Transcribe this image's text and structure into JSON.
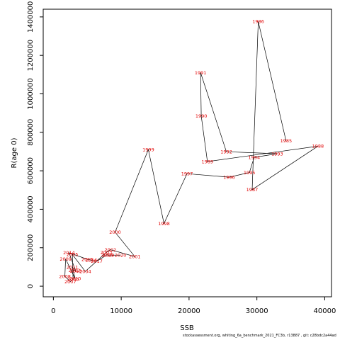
{
  "footer": "stockassessment.org,  whiting_6a_benchmark_2021_FC3b,  r13887 ,  git: c28bdc2a44ad",
  "chart_data": {
    "type": "scatter",
    "subtype": "labeled connected path (stock-recruitment)",
    "title": "",
    "xlabel": "SSB",
    "ylabel": "R(age 0)",
    "xlim": [
      -1500,
      41000
    ],
    "ylim": [
      -55000,
      1440000
    ],
    "xticks": [
      0,
      10000,
      20000,
      30000,
      40000
    ],
    "yticks": [
      0,
      200000,
      400000,
      600000,
      800000,
      1000000,
      1200000,
      1400000
    ],
    "grid": false,
    "legend": "none",
    "colors": {
      "line": "#000000",
      "labels": "#e00000"
    },
    "points": [
      {
        "label": "1985",
        "x": 34300,
        "y": 756000
      },
      {
        "label": "1986",
        "x": 30200,
        "y": 1376000
      },
      {
        "label": "1987",
        "x": 29300,
        "y": 502000
      },
      {
        "label": "1988",
        "x": 39000,
        "y": 728000
      },
      {
        "label": "1989",
        "x": 22700,
        "y": 648000
      },
      {
        "label": "1990",
        "x": 21800,
        "y": 885000
      },
      {
        "label": "1991",
        "x": 21700,
        "y": 1110000
      },
      {
        "label": "1992",
        "x": 25500,
        "y": 699000
      },
      {
        "label": "1993",
        "x": 33000,
        "y": 689000
      },
      {
        "label": "1994",
        "x": 29600,
        "y": 670000
      },
      {
        "label": "1995",
        "x": 28900,
        "y": 591000
      },
      {
        "label": "1996",
        "x": 25900,
        "y": 567000
      },
      {
        "label": "1997",
        "x": 19700,
        "y": 585000
      },
      {
        "label": "1998",
        "x": 16300,
        "y": 326000
      },
      {
        "label": "1999",
        "x": 14000,
        "y": 710000
      },
      {
        "label": "2000",
        "x": 9100,
        "y": 281000
      },
      {
        "label": "2001",
        "x": 12000,
        "y": 154000
      },
      {
        "label": "2002",
        "x": 8400,
        "y": 190000
      },
      {
        "label": "2003",
        "x": 7800,
        "y": 176000
      },
      {
        "label": "2004",
        "x": 4700,
        "y": 77000
      },
      {
        "label": "2005",
        "x": 2800,
        "y": 165000
      },
      {
        "label": "2006",
        "x": 2900,
        "y": 37000
      },
      {
        "label": "2007",
        "x": 2500,
        "y": 24000
      },
      {
        "label": "2008",
        "x": 1700,
        "y": 51000
      },
      {
        "label": "2009",
        "x": 1800,
        "y": 142000
      },
      {
        "label": "2010",
        "x": 3200,
        "y": 40000
      },
      {
        "label": "2011",
        "x": 2800,
        "y": 98000
      },
      {
        "label": "2012",
        "x": 3100,
        "y": 83000
      },
      {
        "label": "2013",
        "x": 3300,
        "y": 78000
      },
      {
        "label": "2014",
        "x": 2300,
        "y": 174000
      },
      {
        "label": "2015",
        "x": 5000,
        "y": 140000
      },
      {
        "label": "2016",
        "x": 5600,
        "y": 135000
      },
      {
        "label": "2017",
        "x": 6400,
        "y": 130000
      },
      {
        "label": "2018",
        "x": 7900,
        "y": 163000
      },
      {
        "label": "2019",
        "x": 8100,
        "y": 162000
      },
      {
        "label": "2020",
        "x": 9900,
        "y": 161000
      }
    ]
  }
}
